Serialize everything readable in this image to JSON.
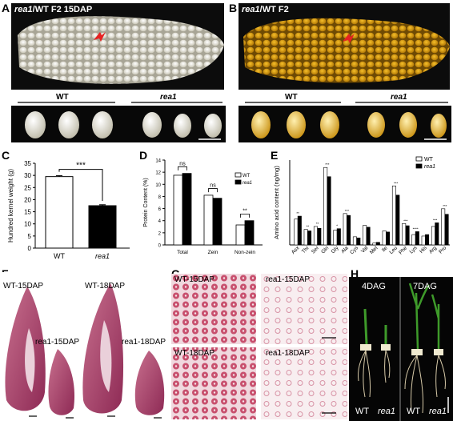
{
  "panels": {
    "A": {
      "letter": "A",
      "title_italic": "rea1",
      "title_rest": "/WT F2 15DAP",
      "group_wt": "WT",
      "group_mut": "rea1"
    },
    "B": {
      "letter": "B",
      "title_italic": "rea1",
      "title_rest": "/WT  F2",
      "group_wt": "WT",
      "group_mut": "rea1"
    },
    "C": {
      "letter": "C"
    },
    "D": {
      "letter": "D"
    },
    "E": {
      "letter": "E"
    },
    "F": {
      "letter": "F",
      "labels": [
        "WT-15DAP",
        "rea1-15DAP",
        "WT-18DAP",
        "rea1-18DAP"
      ]
    },
    "G": {
      "letter": "G",
      "labels": [
        "WT-15DAP",
        "rea1-15DAP",
        "WT-18DAP",
        "rea1-18DAP"
      ]
    },
    "H": {
      "letter": "H",
      "labels": [
        "4DAG",
        "7DAG"
      ],
      "bottom": [
        "WT",
        "rea1",
        "WT",
        "rea1"
      ]
    }
  },
  "chart_data": [
    {
      "id": "C",
      "type": "bar",
      "categories": [
        "WT",
        "rea1"
      ],
      "values": [
        29.5,
        17.5
      ],
      "errors": [
        0.4,
        0.4
      ],
      "ylabel": "Hundred kernel weight (g)",
      "ylim": [
        0,
        35
      ],
      "yticks": [
        0,
        5,
        10,
        15,
        20,
        25,
        30,
        35
      ],
      "significance": "***",
      "colors": [
        "#ffffff",
        "#000000"
      ]
    },
    {
      "id": "D",
      "type": "bar",
      "categories": [
        "Total",
        "Zein",
        "Non-zein"
      ],
      "ylabel": "Protein Content (%)",
      "ylim": [
        0,
        14
      ],
      "yticks": [
        0,
        2,
        4,
        6,
        8,
        10,
        12,
        14
      ],
      "legend": [
        "WT",
        "rea1"
      ],
      "series": [
        {
          "name": "WT",
          "values": [
            11.5,
            8.2,
            3.3
          ]
        },
        {
          "name": "rea1",
          "values": [
            11.8,
            7.7,
            4.0
          ]
        }
      ],
      "significance": [
        "ns",
        "ns",
        "**"
      ]
    },
    {
      "id": "E",
      "type": "bar",
      "categories": [
        "Asx",
        "Thr",
        "Ser",
        "Gln",
        "Gly",
        "Ala",
        "Cys",
        "Val",
        "Met",
        "Ile",
        "Leu",
        "Phe",
        "Lys",
        "His",
        "Arg",
        "Pro"
      ],
      "ylabel": "Amino acid content (ng/mg)",
      "legend": [
        "WT",
        "rea1"
      ],
      "ylim": [
        0,
        23
      ],
      "series": [
        {
          "name": "WT",
          "values": [
            7.0,
            4.2,
            5.0,
            21.0,
            4.0,
            8.5,
            2.2,
            5.3,
            0.5,
            3.8,
            16.0,
            5.8,
            2.8,
            2.4,
            5.0,
            9.8
          ]
        },
        {
          "name": "rea1",
          "values": [
            7.8,
            3.8,
            4.5,
            18.5,
            4.4,
            8.0,
            1.9,
            4.8,
            0.7,
            3.5,
            13.5,
            5.2,
            3.6,
            2.8,
            6.0,
            8.3
          ]
        }
      ],
      "significance": [
        "**",
        "**",
        "**",
        "***",
        "*",
        "***",
        "",
        "",
        "",
        "",
        "***",
        "***",
        "****",
        "",
        "***",
        "***"
      ]
    }
  ]
}
